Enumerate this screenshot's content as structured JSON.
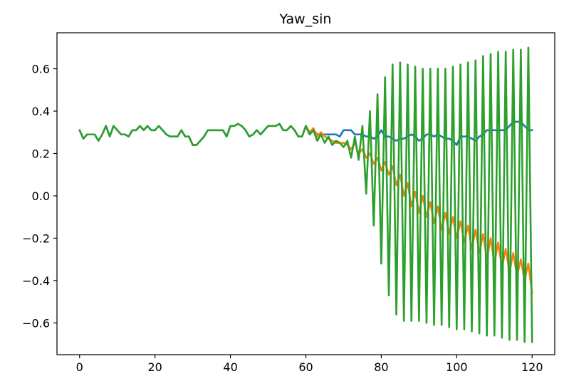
{
  "chart_data": {
    "type": "line",
    "title": "Yaw_sin",
    "xlabel": "",
    "ylabel": "",
    "xlim": [
      -6,
      126
    ],
    "ylim": [
      -0.75,
      0.77
    ],
    "grid": false,
    "legend": "none",
    "x_ticks": [
      0,
      20,
      40,
      60,
      80,
      100,
      120
    ],
    "x_tick_labels": [
      "0",
      "20",
      "40",
      "60",
      "80",
      "100",
      "120"
    ],
    "y_ticks": [
      -0.6,
      -0.4,
      -0.2,
      0.0,
      0.2,
      0.4,
      0.6
    ],
    "y_tick_labels": [
      "−0.6",
      "−0.4",
      "−0.2",
      "0.0",
      "0.2",
      "0.4",
      "0.6"
    ],
    "series": [
      {
        "color": "#1f77b4",
        "x": [
          0,
          1,
          2,
          3,
          4,
          5,
          6,
          7,
          8,
          9,
          10,
          11,
          12,
          13,
          14,
          15,
          16,
          17,
          18,
          19,
          20,
          21,
          22,
          23,
          24,
          25,
          26,
          27,
          28,
          29,
          30,
          31,
          32,
          33,
          34,
          35,
          36,
          37,
          38,
          39,
          40,
          41,
          42,
          43,
          44,
          45,
          46,
          47,
          48,
          49,
          50,
          51,
          52,
          53,
          54,
          55,
          56,
          57,
          58,
          59,
          60,
          61,
          62,
          63,
          64,
          65,
          66,
          67,
          68,
          69,
          70,
          71,
          72,
          73,
          74,
          75,
          76,
          77,
          78,
          79,
          80,
          81,
          82,
          83,
          84,
          85,
          86,
          87,
          88,
          89,
          90,
          91,
          92,
          93,
          94,
          95,
          96,
          97,
          98,
          99,
          100,
          101,
          102,
          103,
          104,
          105,
          106,
          107,
          108,
          109,
          110,
          111,
          112,
          113,
          114,
          115,
          116,
          117,
          118,
          119,
          120
        ],
        "y": [
          0.31,
          0.27,
          0.29,
          0.29,
          0.29,
          0.26,
          0.29,
          0.33,
          0.28,
          0.33,
          0.31,
          0.29,
          0.29,
          0.28,
          0.31,
          0.31,
          0.33,
          0.31,
          0.33,
          0.31,
          0.31,
          0.33,
          0.31,
          0.29,
          0.28,
          0.28,
          0.28,
          0.31,
          0.28,
          0.28,
          0.24,
          0.24,
          0.26,
          0.28,
          0.31,
          0.31,
          0.31,
          0.31,
          0.31,
          0.28,
          0.33,
          0.33,
          0.34,
          0.33,
          0.31,
          0.28,
          0.29,
          0.31,
          0.29,
          0.31,
          0.33,
          0.33,
          0.33,
          0.34,
          0.31,
          0.31,
          0.33,
          0.31,
          0.28,
          0.28,
          0.33,
          0.29,
          0.31,
          0.29,
          0.29,
          0.29,
          0.29,
          0.29,
          0.29,
          0.28,
          0.31,
          0.31,
          0.31,
          0.29,
          0.29,
          0.29,
          0.28,
          0.28,
          0.27,
          0.28,
          0.31,
          0.28,
          0.28,
          0.27,
          0.26,
          0.27,
          0.27,
          0.28,
          0.29,
          0.28,
          0.26,
          0.27,
          0.29,
          0.29,
          0.28,
          0.29,
          0.28,
          0.27,
          0.27,
          0.26,
          0.24,
          0.28,
          0.28,
          0.28,
          0.27,
          0.26,
          0.28,
          0.29,
          0.31,
          0.31,
          0.31,
          0.31,
          0.31,
          0.31,
          0.33,
          0.35,
          0.35,
          0.35,
          0.33,
          0.31,
          0.31
        ]
      },
      {
        "color": "#ff7f0e",
        "x": [
          60,
          61,
          62,
          63,
          64,
          65,
          66,
          67,
          68,
          69,
          70,
          71,
          72,
          73,
          74,
          75,
          76,
          77,
          78,
          79,
          80,
          81,
          82,
          83,
          84,
          85,
          86,
          87,
          88,
          89,
          90,
          91,
          92,
          93,
          94,
          95,
          96,
          97,
          98,
          99,
          100,
          101,
          102,
          103,
          104,
          105,
          106,
          107,
          108,
          109,
          110,
          111,
          112,
          113,
          114,
          115,
          116,
          117,
          118,
          119,
          120
        ],
        "y": [
          0.33,
          0.3,
          0.32,
          0.28,
          0.3,
          0.28,
          0.27,
          0.26,
          0.25,
          0.25,
          0.25,
          0.24,
          0.22,
          0.25,
          0.2,
          0.22,
          0.18,
          0.2,
          0.15,
          0.18,
          0.12,
          0.16,
          0.1,
          0.14,
          0.05,
          0.1,
          0.0,
          0.06,
          -0.05,
          0.02,
          -0.08,
          0.0,
          -0.1,
          -0.03,
          -0.13,
          -0.05,
          -0.16,
          -0.08,
          -0.18,
          -0.1,
          -0.2,
          -0.12,
          -0.22,
          -0.14,
          -0.25,
          -0.16,
          -0.27,
          -0.18,
          -0.3,
          -0.2,
          -0.32,
          -0.22,
          -0.34,
          -0.25,
          -0.36,
          -0.27,
          -0.38,
          -0.3,
          -0.4,
          -0.32,
          -0.46
        ]
      },
      {
        "color": "#2ca02c",
        "x": [
          0,
          1,
          2,
          3,
          4,
          5,
          6,
          7,
          8,
          9,
          10,
          11,
          12,
          13,
          14,
          15,
          16,
          17,
          18,
          19,
          20,
          21,
          22,
          23,
          24,
          25,
          26,
          27,
          28,
          29,
          30,
          31,
          32,
          33,
          34,
          35,
          36,
          37,
          38,
          39,
          40,
          41,
          42,
          43,
          44,
          45,
          46,
          47,
          48,
          49,
          50,
          51,
          52,
          53,
          54,
          55,
          56,
          57,
          58,
          59,
          60,
          61,
          62,
          63,
          64,
          65,
          66,
          67,
          68,
          69,
          70,
          71,
          72,
          73,
          74,
          75,
          76,
          77,
          78,
          79,
          80,
          81,
          82,
          83,
          84,
          85,
          86,
          87,
          88,
          89,
          90,
          91,
          92,
          93,
          94,
          95,
          96,
          97,
          98,
          99,
          100,
          101,
          102,
          103,
          104,
          105,
          106,
          107,
          108,
          109,
          110,
          111,
          112,
          113,
          114,
          115,
          116,
          117,
          118,
          119,
          120
        ],
        "y": [
          0.31,
          0.27,
          0.29,
          0.29,
          0.29,
          0.26,
          0.29,
          0.33,
          0.28,
          0.33,
          0.31,
          0.29,
          0.29,
          0.28,
          0.31,
          0.31,
          0.33,
          0.31,
          0.33,
          0.31,
          0.31,
          0.33,
          0.31,
          0.29,
          0.28,
          0.28,
          0.28,
          0.31,
          0.28,
          0.28,
          0.24,
          0.24,
          0.26,
          0.28,
          0.31,
          0.31,
          0.31,
          0.31,
          0.31,
          0.28,
          0.33,
          0.33,
          0.34,
          0.33,
          0.31,
          0.28,
          0.29,
          0.31,
          0.29,
          0.31,
          0.33,
          0.33,
          0.33,
          0.34,
          0.31,
          0.31,
          0.33,
          0.31,
          0.28,
          0.28,
          0.33,
          0.29,
          0.31,
          0.26,
          0.29,
          0.25,
          0.28,
          0.24,
          0.26,
          0.25,
          0.23,
          0.26,
          0.18,
          0.28,
          0.17,
          0.33,
          0.01,
          0.4,
          -0.14,
          0.48,
          -0.32,
          0.56,
          -0.47,
          0.62,
          -0.56,
          0.63,
          -0.59,
          0.62,
          -0.59,
          0.61,
          -0.59,
          0.6,
          -0.6,
          0.6,
          -0.61,
          0.6,
          -0.61,
          0.6,
          -0.62,
          0.61,
          -0.63,
          0.62,
          -0.63,
          0.63,
          -0.64,
          0.64,
          -0.65,
          0.66,
          -0.66,
          0.67,
          -0.66,
          0.68,
          -0.67,
          0.68,
          -0.68,
          0.69,
          -0.68,
          0.69,
          -0.69,
          0.7,
          -0.69
        ]
      }
    ]
  }
}
